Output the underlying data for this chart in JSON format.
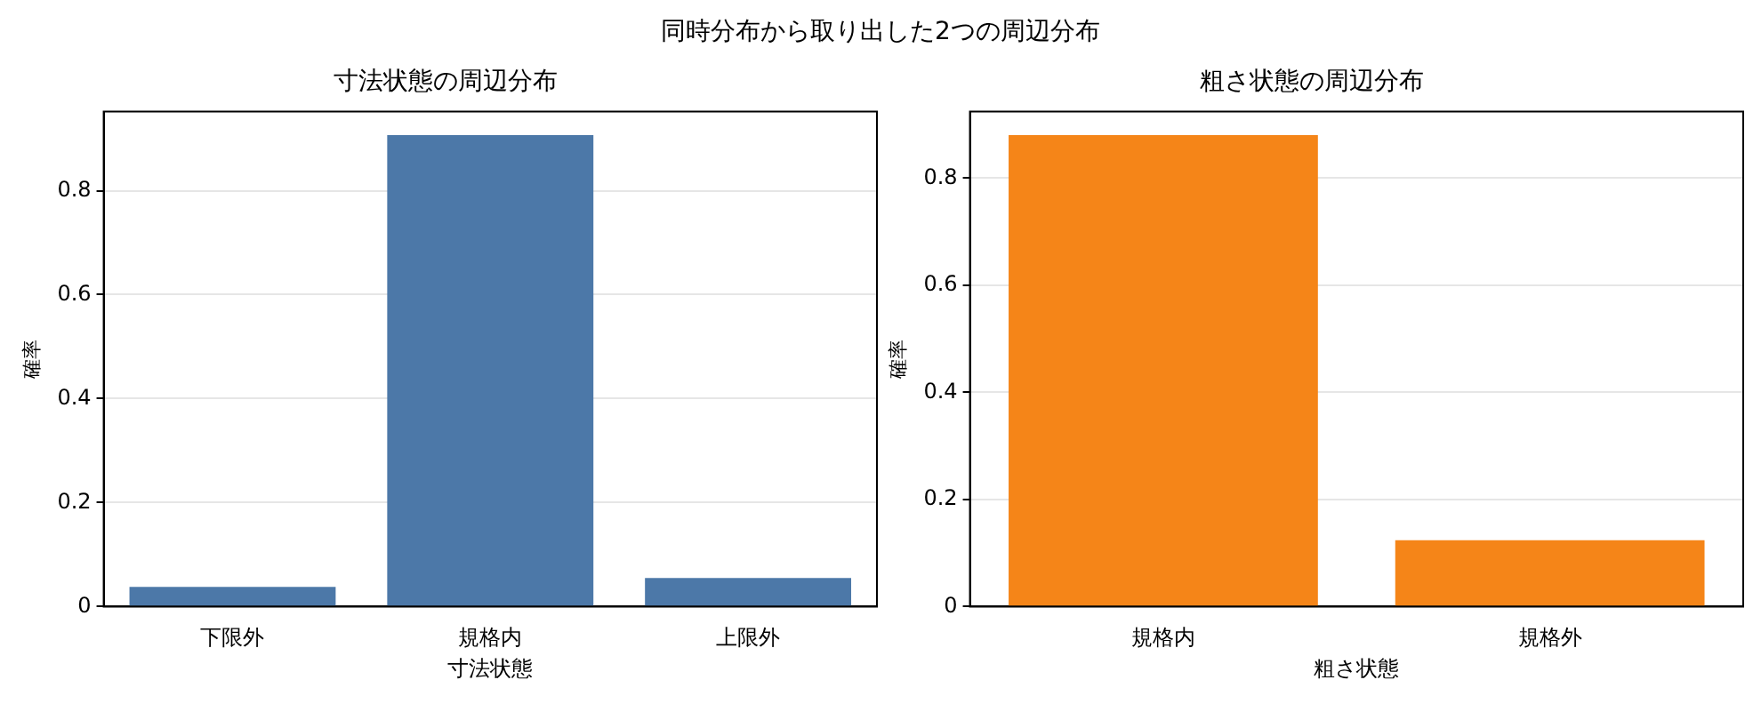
{
  "chart_data": [
    {
      "type": "bar",
      "annotations": [
        "同時分布から取り出した2つの周辺分布"
      ],
      "title": "寸法状態の周辺分布",
      "xlabel": "寸法状態",
      "ylabel": "確率",
      "categories": [
        "下限外",
        "規格内",
        "上限外"
      ],
      "values": [
        0.038,
        0.907,
        0.055
      ],
      "color": "#4c78a8",
      "ylim": [
        0,
        0.952
      ],
      "yticks": [
        0,
        0.2,
        0.4,
        0.6,
        0.8
      ],
      "grid": "y"
    },
    {
      "type": "bar",
      "title": "粗さ状態の周辺分布",
      "xlabel": "粗さ状態",
      "ylabel": "確率",
      "categories": [
        "規格内",
        "規格外"
      ],
      "values": [
        0.88,
        0.124
      ],
      "color": "#f58518",
      "ylim": [
        0,
        0.924
      ],
      "yticks": [
        0,
        0.2,
        0.4,
        0.6,
        0.8
      ],
      "grid": "y"
    }
  ]
}
